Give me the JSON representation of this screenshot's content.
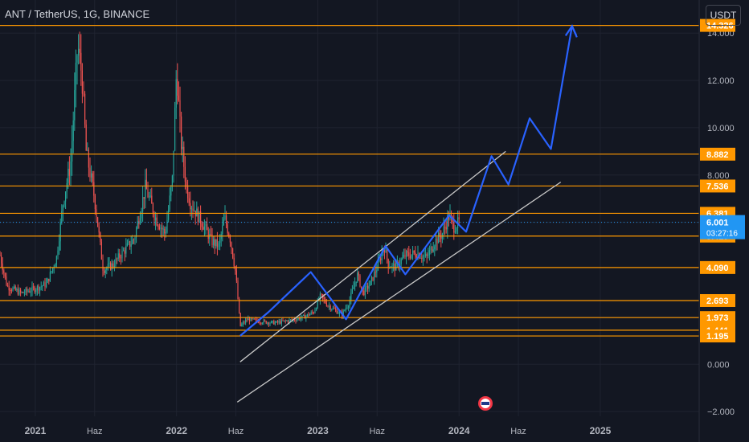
{
  "header": {
    "title": "ANT / TetherUS, 1G, BINANCE",
    "currency_button": "USDT"
  },
  "colors": {
    "background": "#131722",
    "candle_up": "#26a69a",
    "candle_down": "#ef5350",
    "level_line": "#ff9800",
    "channel_line": "#c8c8c8",
    "projection": "#2962ff",
    "price_label": "#2196f3",
    "axis_text": "#b2b5be"
  },
  "chart_data": {
    "type": "candlestick",
    "symbol": "ANT / TetherUS",
    "interval": "1G",
    "exchange": "BINANCE",
    "x_range": [
      2020.75,
      2025.7
    ],
    "y_range": [
      -2.2,
      15.4
    ],
    "x_ticks": [
      {
        "label": "2021",
        "x": 2021.0
      },
      {
        "label": "Haz",
        "x": 2021.42
      },
      {
        "label": "2022",
        "x": 2022.0
      },
      {
        "label": "Haz",
        "x": 2022.42
      },
      {
        "label": "2023",
        "x": 2023.0
      },
      {
        "label": "Haz",
        "x": 2023.42
      },
      {
        "label": "2024",
        "x": 2024.0
      },
      {
        "label": "Haz",
        "x": 2024.42
      },
      {
        "label": "2025",
        "x": 2025.0
      }
    ],
    "y_ticks": [
      "14.000",
      "12.000",
      "10.000",
      "8.000",
      "6.000",
      "2.000",
      "0.000",
      "−2.000"
    ],
    "y_tick_values": [
      14,
      12,
      10,
      8,
      6,
      2,
      0,
      -2
    ],
    "horizontal_levels": [
      {
        "label": "14.326",
        "value": 14.326
      },
      {
        "label": "8.882",
        "value": 8.882
      },
      {
        "label": "7.536",
        "value": 7.536
      },
      {
        "label": "6.381",
        "value": 6.381
      },
      {
        "label": "5.419",
        "value": 5.419
      },
      {
        "label": "4.090",
        "value": 4.09
      },
      {
        "label": "2.693",
        "value": 2.693
      },
      {
        "label": "1.973",
        "value": 1.973
      },
      {
        "label": "1.441",
        "value": 1.441
      },
      {
        "label": "1.195",
        "value": 1.195
      }
    ],
    "current_price": {
      "label": "6.001",
      "value": 6.001,
      "countdown": "03:27:16"
    },
    "price_series": [
      [
        2020.75,
        4.6
      ],
      [
        2020.8,
        3.3
      ],
      [
        2020.9,
        3.0
      ],
      [
        2021.0,
        3.2
      ],
      [
        2021.08,
        3.4
      ],
      [
        2021.15,
        4.5
      ],
      [
        2021.2,
        7.0
      ],
      [
        2021.25,
        8.5
      ],
      [
        2021.3,
        13.5
      ],
      [
        2021.33,
        12.2
      ],
      [
        2021.36,
        9.0
      ],
      [
        2021.42,
        7.0
      ],
      [
        2021.48,
        4.0
      ],
      [
        2021.55,
        4.2
      ],
      [
        2021.6,
        4.6
      ],
      [
        2021.7,
        5.3
      ],
      [
        2021.78,
        7.5
      ],
      [
        2021.85,
        6.2
      ],
      [
        2021.92,
        5.5
      ],
      [
        2021.97,
        7.8
      ],
      [
        2022.0,
        12.5
      ],
      [
        2022.03,
        9.5
      ],
      [
        2022.07,
        7.5
      ],
      [
        2022.1,
        6.8
      ],
      [
        2022.18,
        6.0
      ],
      [
        2022.25,
        5.2
      ],
      [
        2022.3,
        5.0
      ],
      [
        2022.34,
        6.2
      ],
      [
        2022.38,
        5.3
      ],
      [
        2022.42,
        3.8
      ],
      [
        2022.45,
        1.6
      ],
      [
        2022.5,
        1.9
      ],
      [
        2022.6,
        1.8
      ],
      [
        2022.7,
        1.75
      ],
      [
        2022.8,
        1.85
      ],
      [
        2022.9,
        2.0
      ],
      [
        2022.97,
        2.2
      ],
      [
        2023.02,
        2.9
      ],
      [
        2023.07,
        2.5
      ],
      [
        2023.12,
        2.3
      ],
      [
        2023.17,
        2.1
      ],
      [
        2023.22,
        2.6
      ],
      [
        2023.28,
        3.8
      ],
      [
        2023.32,
        3.0
      ],
      [
        2023.37,
        3.4
      ],
      [
        2023.42,
        4.1
      ],
      [
        2023.47,
        5.0
      ],
      [
        2023.5,
        4.2
      ],
      [
        2023.55,
        4.1
      ],
      [
        2023.62,
        4.6
      ],
      [
        2023.7,
        4.7
      ],
      [
        2023.77,
        4.5
      ],
      [
        2023.83,
        5.2
      ],
      [
        2023.88,
        5.5
      ],
      [
        2023.93,
        6.3
      ],
      [
        2023.96,
        5.8
      ],
      [
        2024.0,
        6.0
      ]
    ],
    "channel": {
      "upper": [
        [
          2022.45,
          0.1
        ],
        [
          2024.33,
          9.0
        ]
      ],
      "lower": [
        [
          2022.43,
          -1.6
        ],
        [
          2024.72,
          7.7
        ]
      ]
    },
    "projection_path": [
      [
        2022.45,
        1.2
      ],
      [
        2022.65,
        2.2
      ],
      [
        2022.95,
        3.9
      ],
      [
        2023.2,
        1.9
      ],
      [
        2023.48,
        5.0
      ],
      [
        2023.62,
        3.8
      ],
      [
        2023.93,
        6.3
      ],
      [
        2024.05,
        5.6
      ],
      [
        2024.23,
        8.8
      ],
      [
        2024.35,
        7.6
      ],
      [
        2024.5,
        10.4
      ],
      [
        2024.65,
        9.1
      ],
      [
        2024.8,
        14.3
      ],
      [
        2024.83,
        13.9
      ]
    ]
  }
}
